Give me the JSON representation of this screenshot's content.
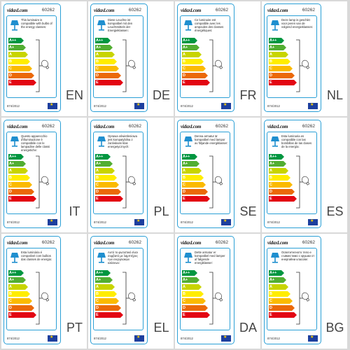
{
  "brand": "vidaxl.com",
  "product_code": "60262",
  "regulation": "874/2012",
  "energy_classes": [
    "A++",
    "A+",
    "A",
    "B",
    "C",
    "D",
    "E"
  ],
  "colors": {
    "frame": "#2a9fd6",
    "class_colors": [
      "#009640",
      "#52ae32",
      "#c8d400",
      "#ffed00",
      "#fbba00",
      "#eb6909",
      "#e30613"
    ],
    "eu_flag": "#1d3f9e"
  },
  "icons": {
    "lamp": "lamp-icon",
    "bulb": "bulb-icon",
    "eu_flag": "eu-flag-icon"
  },
  "panels": [
    {
      "lang": "EN",
      "text": "This luminaire is compatible with bulbs of the energy classes:"
    },
    {
      "lang": "DE",
      "text": "Diese Leuchte ist kompatibel mit den Leuchtmitteln der Energieklassen:"
    },
    {
      "lang": "FR",
      "text": "Ce luminaire est compatible avec les ampoules des classes énergétiques:"
    },
    {
      "lang": "NL",
      "text": "Deze lamp is geschikt voor peren van de volgend energieklassen:"
    },
    {
      "lang": "IT",
      "text": "Questo apparecchio d'illuminazione è compatibile con le lampadine delle classi energetiche:"
    },
    {
      "lang": "PL",
      "text": "Oprawa oświetleniowa jest kompatybilna z żarówkami klas energetycznych:"
    },
    {
      "lang": "SE",
      "text": "Denna armatur är kompatibel med lampor av följande energiklasser:"
    },
    {
      "lang": "ES",
      "text": "Esta luminaria es compatible con las bombillas de las clases de la energía:"
    },
    {
      "lang": "PT",
      "text": "Esta luminária é compatível com bulbos das classes de energia:"
    },
    {
      "lang": "EL",
      "text": "Αυτό το φωτιστικό είναι συμβατό με λαμπτήρες των ενεργειακών κλάσεων:"
    },
    {
      "lang": "DA",
      "text": "Dette armatur er kompatibel med lamper af følgende energiklasser:"
    },
    {
      "lang": "BG",
      "text": "Осветителното тяло е съвместимо с крушки от енергийни класове:"
    }
  ]
}
